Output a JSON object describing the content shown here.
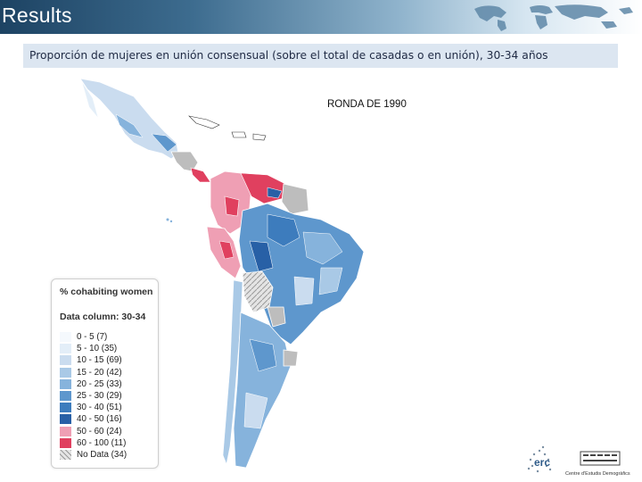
{
  "header": {
    "title": "Results"
  },
  "subtitle": "Proporción de mujeres en unión consensual (sobre el total de casadas o en unión), 30-34 años",
  "map": {
    "round_label": "RONDA DE 1990"
  },
  "legend": {
    "title": "% cohabiting women",
    "column_label": "Data column: 30-34",
    "items": [
      {
        "label": "0 - 5 (7)",
        "color": "#f5f9fd"
      },
      {
        "label": "5 - 10 (35)",
        "color": "#e3eef8"
      },
      {
        "label": "10 - 15 (69)",
        "color": "#cadcef"
      },
      {
        "label": "15 - 20 (42)",
        "color": "#a9c9e6"
      },
      {
        "label": "20 - 25 (33)",
        "color": "#86b3dc"
      },
      {
        "label": "25 - 30 (29)",
        "color": "#5e97cd"
      },
      {
        "label": "30 - 40 (51)",
        "color": "#3d7cbd"
      },
      {
        "label": "40 - 50 (16)",
        "color": "#2860a6"
      },
      {
        "label": "50 - 60 (24)",
        "color": "#ef9fb4"
      },
      {
        "label": "60 - 100 (11)",
        "color": "#e0405f"
      },
      {
        "label": "No Data (34)",
        "color": "#cccccc"
      }
    ]
  },
  "logos": {
    "left_text": "erc",
    "caption": "Centre d'Estudis Demogràfics"
  }
}
